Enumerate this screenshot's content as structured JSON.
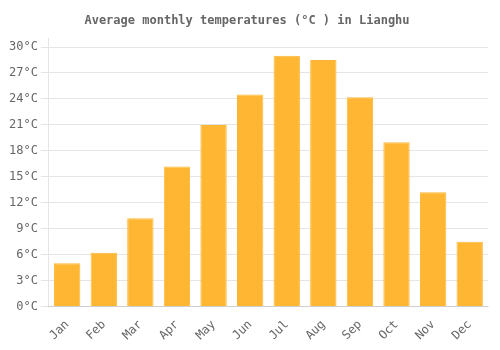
{
  "chart_data": {
    "type": "bar",
    "title": "Average monthly temperatures (°C ) in Lianghu",
    "categories": [
      "Jan",
      "Feb",
      "Mar",
      "Apr",
      "May",
      "Jun",
      "Jul",
      "Aug",
      "Sep",
      "Oct",
      "Nov",
      "Dec"
    ],
    "values": [
      5.0,
      6.2,
      10.2,
      16.2,
      21.0,
      24.5,
      29.0,
      28.5,
      24.2,
      19.0,
      13.2,
      7.5
    ],
    "color": "#FFB733",
    "ylim": [
      0,
      31
    ],
    "yticks": [
      {
        "value": 0,
        "label": "0°C"
      },
      {
        "value": 3,
        "label": "3°C"
      },
      {
        "value": 6,
        "label": "6°C"
      },
      {
        "value": 9,
        "label": "9°C"
      },
      {
        "value": 12,
        "label": "12°C"
      },
      {
        "value": 15,
        "label": "15°C"
      },
      {
        "value": 18,
        "label": "18°C"
      },
      {
        "value": 21,
        "label": "21°C"
      },
      {
        "value": 24,
        "label": "24°C"
      },
      {
        "value": 27,
        "label": "27°C"
      },
      {
        "value": 30,
        "label": "30°C"
      }
    ],
    "grid": true
  }
}
